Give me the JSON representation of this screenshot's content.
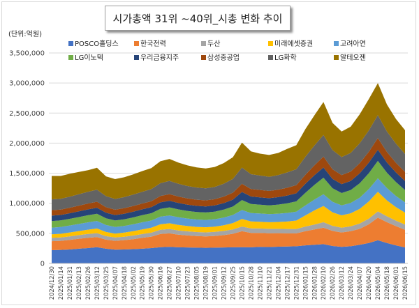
{
  "chart_data": {
    "type": "area",
    "stacked": true,
    "title": "시가총액 31위 ~40위_시총 변화 추이",
    "unit_label": "(단위:억원)",
    "ylim": [
      0,
      3500000
    ],
    "y_ticks": [
      "0",
      "500,000",
      "1,000,000",
      "1,500,000",
      "2,000,000",
      "2,500,000",
      "3,000,000",
      "3,500,000"
    ],
    "y_tick_values": [
      0,
      500000,
      1000000,
      1500000,
      2000000,
      2500000,
      3000000,
      3500000
    ],
    "x_tick_labels": [
      "2024/12/30",
      "2025/01/14",
      "2025/01/31",
      "2025/02/13",
      "2025/02/26",
      "2025/03/12",
      "2025/03/25",
      "2025/04/07",
      "2025/04/18",
      "2025/05/02",
      "2025/05/19",
      "2025/05/30",
      "2025/06/16",
      "2025/06/27",
      "2025/07/10",
      "2025/07/23",
      "2025/08/05",
      "2025/08/19",
      "2025/09/01",
      "2025/09/12",
      "2025/09/25",
      "2025/10/15",
      "2025/10/28",
      "2025/11/10",
      "2025/11/21",
      "2025/12/04",
      "2025/12/17",
      "2025/12/31",
      "2026/01/15",
      "2026/01/28",
      "2026/02/10",
      "2026/02/26",
      "2026/03/12",
      "2026/03/24",
      "2026/04/07",
      "2026/04/20",
      "2026/05/04",
      "2026/05/18",
      "2026/06/01",
      "2026/06/15"
    ],
    "grid": true,
    "legend_position": "top",
    "series": [
      {
        "name": "POSCO홀딩스",
        "color": "#4472C4",
        "values": [
          220000,
          225000,
          232000,
          245000,
          255000,
          270000,
          245000,
          228000,
          232000,
          238000,
          245000,
          255000,
          270000,
          275000,
          268000,
          265000,
          262000,
          260000,
          262000,
          265000,
          268000,
          270000,
          268000,
          275000,
          272000,
          278000,
          282000,
          285000,
          300000,
          310000,
          320000,
          290000,
          275000,
          285000,
          310000,
          340000,
          385000,
          340000,
          300000,
          265000
        ]
      },
      {
        "name": "한국전력",
        "color": "#ED7D31",
        "values": [
          150000,
          150000,
          160000,
          165000,
          172000,
          168000,
          150000,
          148000,
          155000,
          165000,
          180000,
          190000,
          220000,
          225000,
          210000,
          200000,
          192000,
          190000,
          195000,
          205000,
          225000,
          265000,
          240000,
          232000,
          230000,
          225000,
          218000,
          215000,
          235000,
          255000,
          275000,
          250000,
          240000,
          250000,
          265000,
          310000,
          375000,
          345000,
          320000,
          295000
        ]
      },
      {
        "name": "두산",
        "color": "#A5A5A5",
        "values": [
          55000,
          56000,
          58000,
          60000,
          62000,
          65000,
          58000,
          55000,
          57000,
          60000,
          63000,
          66000,
          70000,
          72000,
          70000,
          68000,
          67000,
          66000,
          67000,
          70000,
          73000,
          78000,
          75000,
          74000,
          73000,
          72000,
          72000,
          73000,
          78000,
          82000,
          90000,
          85000,
          80000,
          83000,
          88000,
          95000,
          105000,
          98000,
          92000,
          85000
        ]
      },
      {
        "name": "미래에셋증권",
        "color": "#FFC000",
        "values": [
          60000,
          62000,
          65000,
          68000,
          72000,
          78000,
          70000,
          65000,
          68000,
          72000,
          78000,
          82000,
          90000,
          95000,
          92000,
          88000,
          86000,
          85000,
          88000,
          95000,
          105000,
          125000,
          115000,
          112000,
          110000,
          115000,
          125000,
          140000,
          185000,
          235000,
          270000,
          225000,
          205000,
          215000,
          245000,
          285000,
          325000,
          265000,
          225000,
          200000
        ]
      },
      {
        "name": "고려아연",
        "color": "#5B9BD5",
        "values": [
          110000,
          112000,
          115000,
          118000,
          122000,
          125000,
          115000,
          110000,
          112000,
          115000,
          118000,
          120000,
          128000,
          130000,
          128000,
          125000,
          123000,
          122000,
          123000,
          128000,
          135000,
          150000,
          140000,
          137000,
          135000,
          138000,
          142000,
          148000,
          165000,
          180000,
          195000,
          175000,
          165000,
          172000,
          185000,
          205000,
          225000,
          205000,
          185000,
          170000
        ]
      },
      {
        "name": "LG이노텍",
        "color": "#70AD47",
        "values": [
          110000,
          110000,
          112000,
          115000,
          118000,
          120000,
          112000,
          108000,
          110000,
          115000,
          118000,
          122000,
          130000,
          135000,
          130000,
          127000,
          125000,
          124000,
          126000,
          132000,
          140000,
          165000,
          150000,
          147000,
          145000,
          150000,
          160000,
          170000,
          210000,
          245000,
          275000,
          225000,
          205000,
          215000,
          240000,
          265000,
          290000,
          255000,
          230000,
          205000
        ]
      },
      {
        "name": "우리금융지주",
        "color": "#264478",
        "values": [
          90000,
          90000,
          92000,
          95000,
          97000,
          100000,
          92000,
          90000,
          92000,
          95000,
          97000,
          100000,
          107000,
          110000,
          107000,
          104000,
          102000,
          101000,
          103000,
          108000,
          115000,
          135000,
          125000,
          122000,
          120000,
          124000,
          130000,
          135000,
          150000,
          160000,
          170000,
          155000,
          148000,
          152000,
          165000,
          175000,
          185000,
          170000,
          160000,
          150000
        ]
      },
      {
        "name": "삼성중공업",
        "color": "#9E480E",
        "values": [
          90000,
          90000,
          92000,
          95000,
          97000,
          100000,
          92000,
          90000,
          92000,
          95000,
          97000,
          100000,
          107000,
          110000,
          107000,
          104000,
          102000,
          101000,
          103000,
          108000,
          115000,
          135000,
          125000,
          122000,
          120000,
          124000,
          130000,
          135000,
          150000,
          165000,
          180000,
          160000,
          150000,
          155000,
          170000,
          180000,
          195000,
          175000,
          160000,
          150000
        ]
      },
      {
        "name": "LG화학",
        "color": "#636363",
        "values": [
          180000,
          180000,
          184000,
          190000,
          195000,
          200000,
          184000,
          178000,
          184000,
          190000,
          195000,
          200000,
          212000,
          220000,
          212000,
          206000,
          203000,
          200000,
          205000,
          215000,
          230000,
          270000,
          245000,
          240000,
          235000,
          242000,
          255000,
          265000,
          300000,
          330000,
          360000,
          320000,
          300000,
          310000,
          330000,
          355000,
          380000,
          340000,
          320000,
          300000
        ]
      },
      {
        "name": "알테오젠",
        "color": "#997300",
        "values": [
          390000,
          380000,
          380000,
          370000,
          360000,
          365000,
          330000,
          330000,
          330000,
          335000,
          345000,
          350000,
          365000,
          365000,
          352000,
          342000,
          335000,
          330000,
          332000,
          343000,
          360000,
          417000,
          380000,
          364000,
          363000,
          369000,
          391000,
          400000,
          460000,
          502000,
          549000,
          452000,
          425000,
          438000,
          482000,
          522000,
          534000,
          449000,
          410000,
          395000
        ]
      }
    ]
  }
}
